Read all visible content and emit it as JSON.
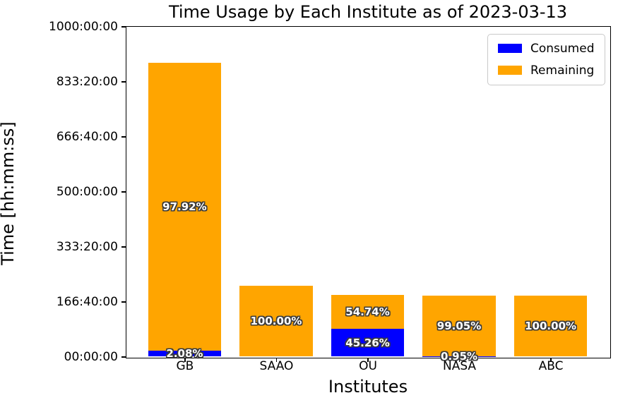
{
  "title": "Time Usage by Each Institute as of 2023-03-13",
  "chart_data": {
    "type": "bar",
    "stacked": true,
    "title": "Time Usage by Each Institute as of 2023-03-13",
    "xlabel": "Institutes",
    "ylabel": "Time [hh:mm:ss]",
    "categories": [
      "GB",
      "SAAO",
      "OU",
      "NASA",
      "ABC"
    ],
    "totals_hours": [
      891,
      214,
      186,
      184,
      184
    ],
    "series": [
      {
        "name": "Consumed",
        "color": "#0000ff",
        "values_hours": [
          18.5,
          0,
          84.2,
          1.75,
          0
        ],
        "labels": [
          "2.08%",
          "",
          "45.26%",
          "0.95%",
          ""
        ]
      },
      {
        "name": "Remaining",
        "color": "#ffa500",
        "values_hours": [
          872.5,
          214,
          101.8,
          182.25,
          184
        ],
        "labels": [
          "97.92%",
          "100.00%",
          "54.74%",
          "99.05%",
          "100.00%"
        ]
      }
    ],
    "ylim": [
      0,
      1000
    ],
    "yticks": [
      {
        "v": 0,
        "label": "00:00:00"
      },
      {
        "v": 166.6667,
        "label": "166:40:00"
      },
      {
        "v": 333.3333,
        "label": "333:20:00"
      },
      {
        "v": 500,
        "label": "500:00:00"
      },
      {
        "v": 666.6667,
        "label": "666:40:00"
      },
      {
        "v": 833.3333,
        "label": "833:20:00"
      },
      {
        "v": 1000,
        "label": "1000:00:00"
      }
    ],
    "grid": false,
    "legend": {
      "position": "upper-right",
      "entries": [
        {
          "label": "Consumed",
          "color": "#0000ff"
        },
        {
          "label": "Remaining",
          "color": "#ffa500"
        }
      ]
    }
  }
}
